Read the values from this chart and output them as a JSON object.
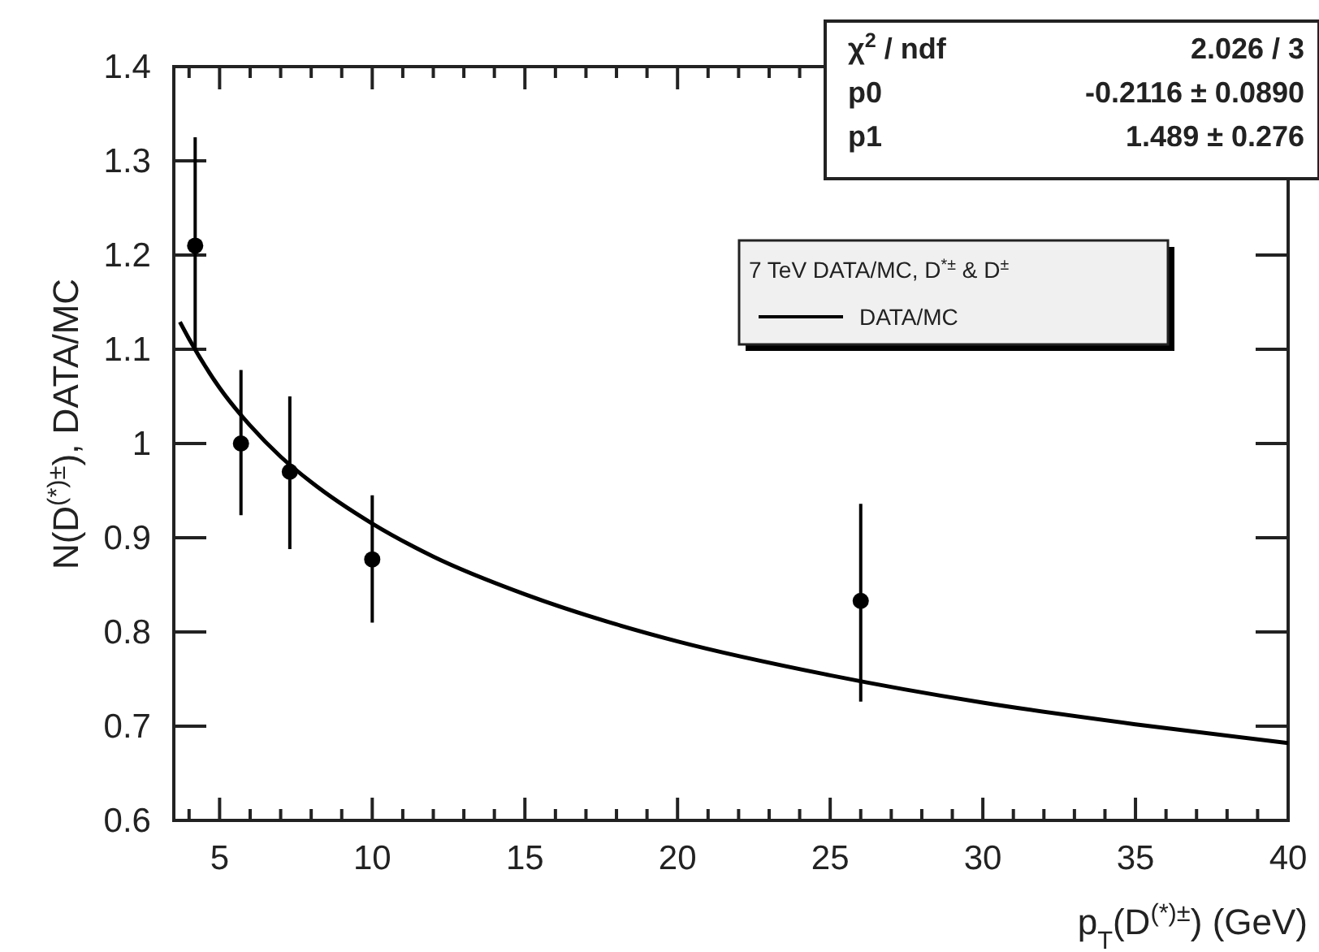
{
  "chart_data": {
    "type": "scatter",
    "xlabel": "p$_{T}$(D$^{(*)±}$)  (GeV)",
    "ylabel": "N(D$^{(*)±}$), DATA/MC",
    "legend_title": "7 TeV DATA/MC, D$^{*±}$ & D$^{±}$",
    "legend": "top right",
    "xlim": [
      3.5,
      40
    ],
    "ylim": [
      0.6,
      1.4
    ],
    "xticks": [
      {
        "value": 4,
        "label": null
      },
      5,
      {
        "value": 6,
        "label": null
      },
      {
        "value": 7,
        "label": null
      },
      {
        "value": 8,
        "label": null
      },
      {
        "value": 9,
        "label": null
      },
      10,
      {
        "value": 11,
        "label": null
      },
      {
        "value": 12,
        "label": null
      },
      {
        "value": 13,
        "label": null
      },
      {
        "value": 14,
        "label": null
      },
      15,
      {
        "value": 16,
        "label": null
      },
      {
        "value": 17,
        "label": null
      },
      {
        "value": 18,
        "label": null
      },
      {
        "value": 19,
        "label": null
      },
      20,
      {
        "value": 21,
        "label": null
      },
      {
        "value": 22,
        "label": null
      },
      {
        "value": 23,
        "label": null
      },
      {
        "value": 24,
        "label": null
      },
      25,
      {
        "value": 26,
        "label": null
      },
      {
        "value": 27,
        "label": null
      },
      {
        "value": 28,
        "label": null
      },
      {
        "value": 29,
        "label": null
      },
      30,
      {
        "value": 31,
        "label": null
      },
      {
        "value": 32,
        "label": null
      },
      {
        "value": 33,
        "label": null
      },
      {
        "value": 34,
        "label": null
      },
      35,
      {
        "value": 36,
        "label": null
      },
      {
        "value": 37,
        "label": null
      },
      {
        "value": 38,
        "label": null
      },
      {
        "value": 39,
        "label": null
      },
      40
    ],
    "yticks": [
      0.6,
      0.7,
      0.8,
      0.9,
      1,
      1.1,
      1.2,
      1.3,
      1.4
    ],
    "series": [
      {
        "type": "scatter",
        "color": "#000000",
        "marker": "circle",
        "x": [
          4.2,
          5.7,
          7.3,
          10,
          26
        ],
        "values": [
          1.21,
          1.0,
          0.97,
          0.877,
          0.833
        ],
        "errors": [
          [
            1.1,
            1.325
          ],
          [
            0.924,
            1.078
          ],
          [
            0.888,
            1.05
          ],
          [
            0.81,
            0.945
          ],
          [
            0.726,
            0.936
          ]
        ]
      },
      {
        "type": "line",
        "name": "DATA/MC",
        "color": "#000000",
        "line_style": "solid",
        "x": [
          3.7,
          4,
          5,
          6,
          7,
          8,
          10,
          12,
          15,
          18,
          20,
          25,
          30,
          35,
          40
        ],
        "values": [
          1.129,
          1.111,
          1.059,
          1.019,
          0.986,
          0.959,
          0.915,
          0.88,
          0.84,
          0.808,
          0.79,
          0.754,
          0.725,
          0.702,
          0.682
        ]
      }
    ],
    "annotations": [
      "χ$^{2}$ / ndf",
      "2.026 / 3",
      "p0",
      "-0.2116 ± 0.0890",
      "p1",
      "1.489 ± 0.276"
    ]
  }
}
